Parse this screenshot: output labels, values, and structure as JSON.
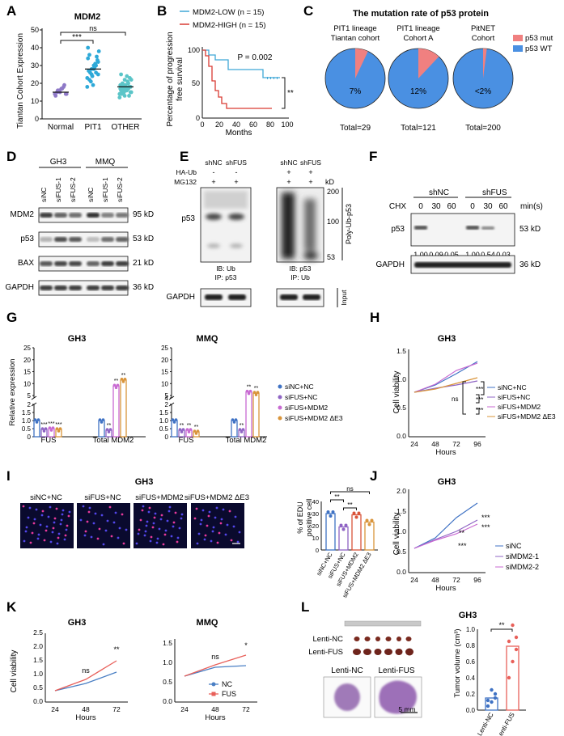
{
  "labels": {
    "A": "A",
    "B": "B",
    "C": "C",
    "D": "D",
    "E": "E",
    "F": "F",
    "G": "G",
    "H": "H",
    "I": "I",
    "J": "J",
    "K": "K",
    "L": "L"
  },
  "panelA": {
    "title": "MDM2",
    "ylabel": "Tiantan Cohort Expression",
    "yticks": [
      "0",
      "10",
      "20",
      "30",
      "40",
      "50"
    ],
    "groups": [
      "Normal",
      "PIT1",
      "OTHER"
    ],
    "sig": [
      "***",
      "ns"
    ],
    "colors": [
      "#8e79c7",
      "#2ea9d8",
      "#5bc5c8"
    ]
  },
  "panelB": {
    "legend": [
      "MDM2-LOW (n = 15)",
      "MDM2-HIGH (n = 15)"
    ],
    "ylabel": "Percentage of progression free survival",
    "xlabel": "Months",
    "xticks": [
      "0",
      "20",
      "40",
      "60",
      "80",
      "100"
    ],
    "yticks": [
      "0",
      "50",
      "100"
    ],
    "pval": "P = 0.002",
    "sig": "**",
    "colors": [
      "#3fa7d6",
      "#d93a32"
    ]
  },
  "panelC": {
    "title": "The mutation rate of p53 protein",
    "cohorts": [
      {
        "name1": "PIT1 lineage",
        "name2": "Tiantan cohort",
        "pct": "7%",
        "total": "Total=29",
        "mut": 0.07
      },
      {
        "name1": "PIT1 lineage",
        "name2": "Cohort A",
        "pct": "12%",
        "total": "Total=121",
        "mut": 0.12
      },
      {
        "name1": "PitNET",
        "name2": "Cohort",
        "pct": "<2%",
        "total": "Total=200",
        "mut": 0.02
      }
    ],
    "legend": [
      "p53 mut",
      "p53 WT"
    ],
    "colors": {
      "mut": "#f08080",
      "wt": "#4a90e2"
    }
  },
  "panelD": {
    "groups": [
      "GH3",
      "MMQ"
    ],
    "lanes": [
      "siNC",
      "siFUS-1",
      "siFUS-2",
      "siNC",
      "siFUS-1",
      "siFUS-2"
    ],
    "rows": [
      {
        "name": "MDM2",
        "kd": "95 kD"
      },
      {
        "name": "p53",
        "kd": "53 kD"
      },
      {
        "name": "BAX",
        "kd": "21 kD"
      },
      {
        "name": "GAPDH",
        "kd": "36 kD"
      }
    ]
  },
  "panelE": {
    "lanes": [
      "shNC",
      "shFUS",
      "shNC",
      "shFUS"
    ],
    "haub": [
      "HA-Ub",
      "-",
      "-",
      "+",
      "+"
    ],
    "mg": [
      "MG132",
      "+",
      "+",
      "+",
      "+"
    ],
    "kd": "kD",
    "markers": [
      "200",
      "100",
      "53"
    ],
    "p53": "p53",
    "ib1": "IB: Ub",
    "ip1": "IP: p53",
    "ib2": "IB: p53",
    "ip2": "IP: Ub",
    "polyub": "Poly-Ub-p53",
    "gapdh": "GAPDH",
    "input": "Input"
  },
  "panelF": {
    "groups": [
      "shNC",
      "shFUS"
    ],
    "cht": "CHX",
    "time": [
      "0",
      "30",
      "60",
      "0",
      "30",
      "60"
    ],
    "unit": "min(s)",
    "p53": "p53",
    "kd1": "53 kD",
    "quant": [
      "1.00",
      "0.09",
      "0.05",
      "1.00",
      "0.54",
      "0.03"
    ],
    "gapdh": "GAPDH",
    "kd2": "36 kD"
  },
  "panelG": {
    "titles": [
      "GH3",
      "MMQ"
    ],
    "ylabel": "Relative expression",
    "yticks": [
      "0",
      "0.5",
      "1.0",
      "1.5",
      "2",
      "4",
      "5",
      "10",
      "15",
      "20",
      "25"
    ],
    "xcats": [
      "FUS",
      "Total MDM2"
    ],
    "legend": [
      "siNC+NC",
      "siFUS+NC",
      "siFUS+MDM2",
      "siFUS+MDM2 ΔE3"
    ],
    "colors": [
      "#3f72c4",
      "#8f64c4",
      "#c86ad2",
      "#d9943a"
    ],
    "star2": "**",
    "star3": "***",
    "chart_gh3": {
      "FUS": [
        1.0,
        0.45,
        0.5,
        0.45
      ],
      "MDM2": [
        1.0,
        0.4,
        9.0,
        11.5
      ]
    },
    "chart_mmq": {
      "FUS": [
        1.0,
        0.4,
        0.4,
        0.3
      ],
      "MDM2": [
        1.0,
        0.4,
        6.5,
        6.0
      ]
    }
  },
  "panelH": {
    "title": "GH3",
    "ylabel": "Cell viability",
    "xlabel": "Hours",
    "xticks": [
      "24",
      "48",
      "72",
      "96"
    ],
    "yticks": [
      "0.0",
      "0.5",
      "1.0",
      "1.5"
    ],
    "legend": [
      "siNC+NC",
      "siFUS+NC",
      "siFUS+MDM2",
      "siFUS+MDM2 ΔE3"
    ],
    "sig": [
      "***",
      "***",
      "***",
      "ns"
    ],
    "colors": [
      "#3f72c4",
      "#8f64c4",
      "#c86ad2",
      "#d9943a"
    ]
  },
  "panelI": {
    "title": "GH3",
    "imgs": [
      "siNC+NC",
      "siFUS+NC",
      "siFUS+MDM2",
      "siFUS+MDM2 ΔE3"
    ],
    "ylabel": "% of EDU positive cell",
    "yticks": [
      "0",
      "10",
      "20",
      "30",
      "40"
    ],
    "cats": [
      "siNC+NC",
      "siFUS+NC",
      "siFUS+MDM2",
      "siFUS+MDM2 ΔE3"
    ],
    "sig": [
      "**",
      "**",
      "ns"
    ],
    "values": [
      30,
      19,
      29,
      23
    ],
    "colors": [
      "#3f72c4",
      "#8f64c4",
      "#d9543a",
      "#d9943a"
    ]
  },
  "panelJ": {
    "title": "GH3",
    "ylabel": "Cell viability",
    "xlabel": "Hours",
    "xticks": [
      "24",
      "48",
      "72",
      "96"
    ],
    "yticks": [
      "0.0",
      "0.5",
      "1.0",
      "1.5",
      "2.0"
    ],
    "legend": [
      "siNC",
      "siMDM2-1",
      "siMDM2-2"
    ],
    "sig": [
      "**",
      "***",
      "***",
      "***"
    ],
    "colors": [
      "#3f72c4",
      "#8f64c4",
      "#c86ad2"
    ]
  },
  "panelK": {
    "titles": [
      "GH3",
      "MMQ"
    ],
    "ylabel": "Cell viability",
    "xlabel": "Hours",
    "xticks": [
      "24",
      "48",
      "72"
    ],
    "yticks_gh3": [
      "0.0",
      "0.5",
      "1.0",
      "1.5",
      "2.0",
      "2.5"
    ],
    "yticks_mmq": [
      "0.0",
      "0.5",
      "1.0",
      "1.5"
    ],
    "sig_gh3": [
      "ns",
      "**"
    ],
    "sig_mmq": [
      "ns",
      "*"
    ],
    "legend": [
      "NC",
      "FUS"
    ],
    "colors": [
      "#4a7fc4",
      "#e8605a"
    ]
  },
  "panelL": {
    "title": "GH3",
    "rows": [
      "Lenti-NC",
      "Lenti-FUS"
    ],
    "histo": [
      "Lenti-NC",
      "Lenti-FUS"
    ],
    "scale": "5 mm",
    "ylabel": "Tumor volume (cm³)",
    "yticks": [
      "0.0",
      "0.2",
      "0.4",
      "0.6",
      "0.8",
      "1.0"
    ],
    "cats": [
      "Lenti-NC",
      "Lenti-FUS"
    ],
    "sig": "**",
    "values": [
      0.15,
      0.79
    ],
    "colors": [
      "#3f72c4",
      "#e8605a"
    ]
  }
}
